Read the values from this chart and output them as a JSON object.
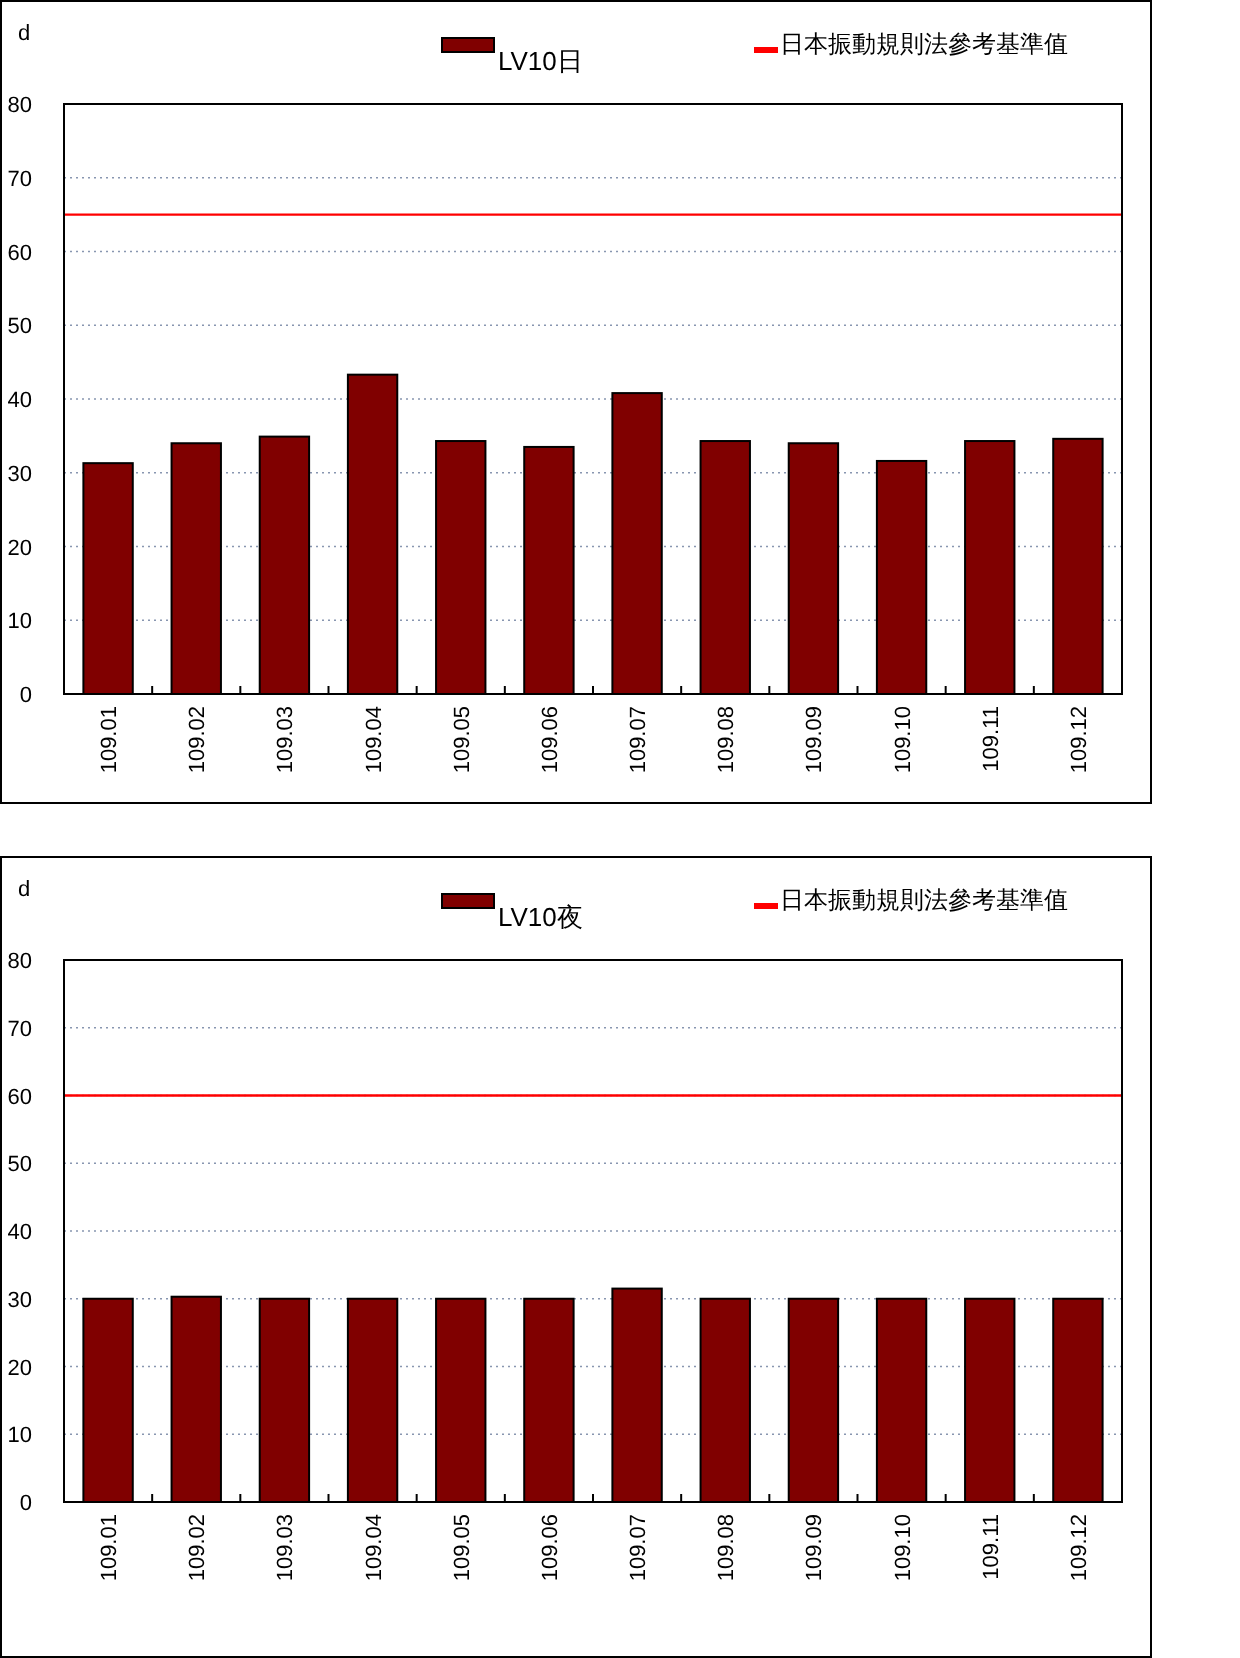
{
  "chart_data": [
    {
      "type": "bar",
      "ylabel": "d",
      "categories": [
        "109.01",
        "109.02",
        "109.03",
        "109.04",
        "109.05",
        "109.06",
        "109.07",
        "109.08",
        "109.09",
        "109.10",
        "109.11",
        "109.12"
      ],
      "series": [
        {
          "name": "LV10日",
          "color": "#800000",
          "values": [
            31.3,
            34.0,
            34.9,
            43.3,
            34.3,
            33.5,
            40.8,
            34.3,
            34.0,
            31.6,
            34.3,
            34.6
          ]
        }
      ],
      "ref_lines": [
        {
          "axis": "y",
          "value": 65,
          "label": "日本振動規則法參考基準值",
          "color": "#ff0000"
        }
      ],
      "ylim": [
        0,
        80
      ],
      "yticks": [
        0,
        10,
        20,
        30,
        40,
        50,
        60,
        70,
        80
      ],
      "grid": "y",
      "legend": "top"
    },
    {
      "type": "bar",
      "ylabel": "d",
      "categories": [
        "109.01",
        "109.02",
        "109.03",
        "109.04",
        "109.05",
        "109.06",
        "109.07",
        "109.08",
        "109.09",
        "109.10",
        "109.11",
        "109.12"
      ],
      "series": [
        {
          "name": "LV10夜",
          "color": "#800000",
          "values": [
            30.0,
            30.3,
            30.0,
            30.0,
            30.0,
            30.0,
            31.5,
            30.0,
            30.0,
            30.0,
            30.0,
            30.0
          ]
        }
      ],
      "ref_lines": [
        {
          "axis": "y",
          "value": 60,
          "label": "日本振動規則法參考基準值",
          "color": "#ff0000"
        }
      ],
      "ylim": [
        0,
        80
      ],
      "yticks": [
        0,
        10,
        20,
        30,
        40,
        50,
        60,
        70,
        80
      ],
      "grid": "y",
      "legend": "top"
    }
  ]
}
